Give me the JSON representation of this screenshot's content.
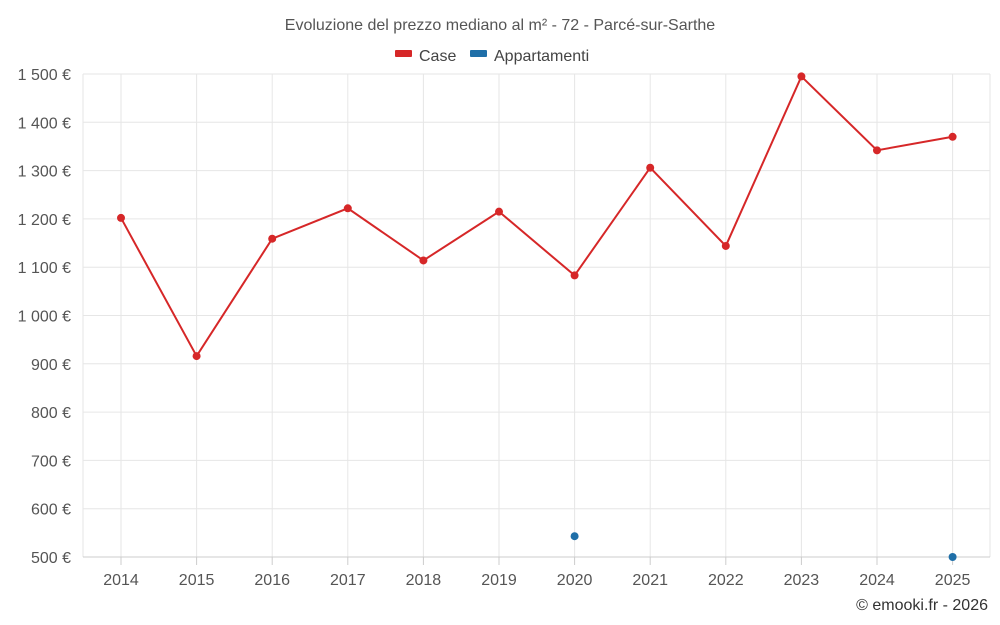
{
  "chart_data": {
    "type": "line",
    "title": "Evoluzione del prezzo mediano al m² - 72 - Parcé-sur-Sarthe",
    "categories": [
      "2014",
      "2015",
      "2016",
      "2017",
      "2018",
      "2019",
      "2020",
      "2021",
      "2022",
      "2023",
      "2024",
      "2025"
    ],
    "y_ticks": [
      500,
      600,
      700,
      800,
      900,
      1000,
      1100,
      1200,
      1300,
      1400,
      1500
    ],
    "y_tick_labels": [
      "500 €",
      "600 €",
      "700 €",
      "800 €",
      "900 €",
      "1 000 €",
      "1 100 €",
      "1 200 €",
      "1 300 €",
      "1 400 €",
      "1 500 €"
    ],
    "ylim": [
      500,
      1500
    ],
    "grid": true,
    "legend_position": "top-center",
    "series": [
      {
        "name": "Case",
        "color": "#d62728",
        "values": [
          1202,
          916,
          1159,
          1222,
          1114,
          1215,
          1083,
          1306,
          1144,
          1495,
          1342,
          1370
        ]
      },
      {
        "name": "Appartamenti",
        "color": "#1f6fa8",
        "values": [
          null,
          null,
          null,
          null,
          null,
          null,
          543,
          null,
          null,
          null,
          null,
          500
        ]
      }
    ]
  },
  "credit": "© emooki.fr - 2026"
}
